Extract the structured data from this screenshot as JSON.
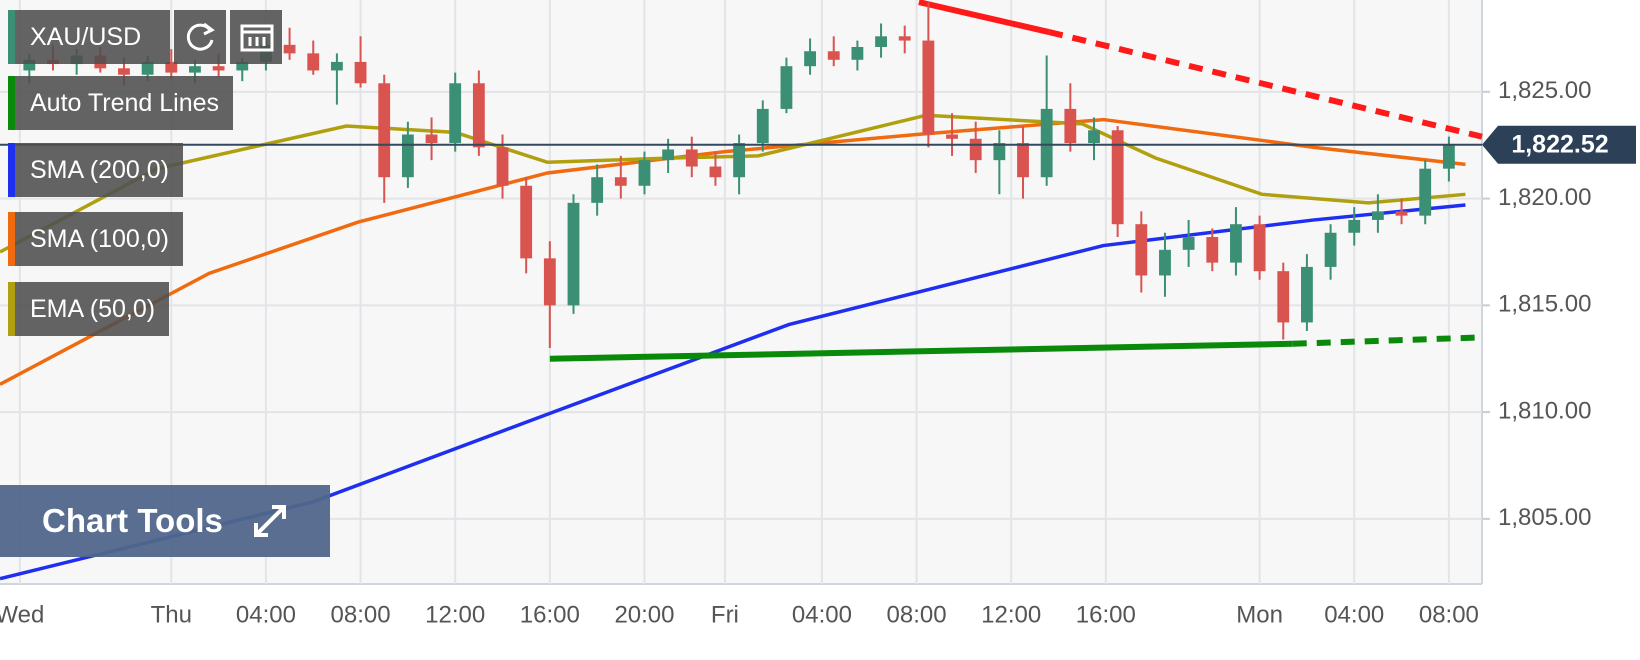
{
  "chart_data": {
    "type": "candlestick",
    "title": "XAU/USD",
    "up_color": "#3a8f74",
    "down_color": "#d9534f",
    "grid": true,
    "xlim": [
      -7.24,
      55.4
    ],
    "ylim": [
      1801.95,
      1829.3
    ],
    "xticks": [
      {
        "value": -6.4,
        "label": "Wed"
      },
      {
        "value": 0,
        "label": "Thu"
      },
      {
        "value": 4,
        "label": "04:00"
      },
      {
        "value": 8,
        "label": "08:00"
      },
      {
        "value": 12,
        "label": "12:00"
      },
      {
        "value": 16,
        "label": "16:00"
      },
      {
        "value": 20,
        "label": "20:00"
      },
      {
        "value": 23.4,
        "label": "Fri"
      },
      {
        "value": 27.5,
        "label": "04:00"
      },
      {
        "value": 31.5,
        "label": "08:00"
      },
      {
        "value": 35.5,
        "label": "12:00"
      },
      {
        "value": 39.5,
        "label": "16:00"
      },
      {
        "value": 46,
        "label": "Mon"
      },
      {
        "value": 50,
        "label": "04:00"
      },
      {
        "value": 54,
        "label": "08:00"
      }
    ],
    "yticks": [
      {
        "value": 1805,
        "label": "1,805.00"
      },
      {
        "value": 1810,
        "label": "1,810.00"
      },
      {
        "value": 1815,
        "label": "1,815.00"
      },
      {
        "value": 1820,
        "label": "1,820.00"
      },
      {
        "value": 1825,
        "label": "1,825.00"
      }
    ],
    "x": [
      -6,
      -5,
      -4,
      -3,
      -2,
      -1,
      0,
      1,
      2,
      3,
      4,
      5,
      6,
      7,
      8,
      9,
      10,
      11,
      12,
      13,
      14,
      15,
      16,
      17,
      18,
      19,
      20,
      21,
      22,
      23,
      24,
      25,
      26,
      27,
      28,
      29,
      30,
      31,
      32,
      33,
      34,
      35,
      36,
      37,
      38,
      39,
      40,
      41,
      42,
      43,
      44,
      45,
      46,
      47,
      48,
      49,
      50,
      51,
      52,
      53,
      54
    ],
    "open": [
      1826.0,
      1826.5,
      1826.3,
      1826.7,
      1826.1,
      1825.8,
      1826.4,
      1825.9,
      1826.2,
      1826.0,
      1826.4,
      1827.2,
      1826.8,
      1826.0,
      1826.4,
      1825.4,
      1821.0,
      1823.0,
      1822.6,
      1825.4,
      1822.4,
      1820.6,
      1817.2,
      1815.0,
      1819.8,
      1821.0,
      1820.6,
      1821.8,
      1822.3,
      1821.5,
      1821.0,
      1822.6,
      1824.2,
      1826.2,
      1826.9,
      1826.5,
      1827.1,
      1827.6,
      1827.4,
      1823.0,
      1822.8,
      1821.8,
      1822.6,
      1821.0,
      1824.2,
      1822.6,
      1823.2,
      1818.8,
      1816.4,
      1817.6,
      1818.2,
      1817.0,
      1818.8,
      1816.6,
      1814.2,
      1816.8,
      1818.4,
      1819.0,
      1819.4,
      1819.2,
      1821.4
    ],
    "high": [
      1826.8,
      1827.2,
      1827.0,
      1827.1,
      1826.6,
      1826.7,
      1827.0,
      1826.5,
      1826.8,
      1826.6,
      1827.5,
      1828.0,
      1827.4,
      1826.8,
      1827.6,
      1825.8,
      1823.6,
      1823.8,
      1825.9,
      1826.0,
      1823.0,
      1821.0,
      1818.0,
      1820.2,
      1821.6,
      1822.0,
      1822.2,
      1822.8,
      1822.9,
      1822.2,
      1823.0,
      1824.6,
      1826.6,
      1827.5,
      1827.6,
      1827.4,
      1828.2,
      1828.1,
      1829.2,
      1824.0,
      1823.6,
      1823.2,
      1823.4,
      1826.7,
      1825.4,
      1823.8,
      1823.4,
      1819.4,
      1818.4,
      1819.0,
      1818.6,
      1819.6,
      1819.2,
      1817.0,
      1817.4,
      1818.8,
      1819.6,
      1820.2,
      1820.0,
      1821.8,
      1822.9
    ],
    "low": [
      1825.4,
      1826.0,
      1825.8,
      1825.9,
      1825.3,
      1825.5,
      1825.6,
      1825.4,
      1825.7,
      1825.5,
      1826.0,
      1826.5,
      1825.8,
      1824.4,
      1825.2,
      1819.8,
      1820.5,
      1821.8,
      1822.2,
      1822.0,
      1820.0,
      1816.5,
      1813.0,
      1814.6,
      1819.2,
      1820.0,
      1820.2,
      1821.2,
      1821.0,
      1820.6,
      1820.2,
      1822.2,
      1824.0,
      1825.8,
      1826.2,
      1826.0,
      1826.6,
      1826.8,
      1822.4,
      1822.0,
      1821.2,
      1820.2,
      1820.0,
      1820.6,
      1822.2,
      1821.8,
      1818.2,
      1815.6,
      1815.4,
      1816.8,
      1816.6,
      1816.4,
      1816.2,
      1813.4,
      1813.8,
      1816.2,
      1817.8,
      1818.4,
      1818.8,
      1818.8,
      1820.8
    ],
    "close": [
      1826.5,
      1826.3,
      1826.7,
      1826.1,
      1825.8,
      1826.4,
      1825.9,
      1826.2,
      1826.0,
      1826.4,
      1827.2,
      1826.8,
      1826.0,
      1826.4,
      1825.4,
      1821.0,
      1823.0,
      1822.6,
      1825.4,
      1822.4,
      1820.6,
      1817.2,
      1815.0,
      1819.8,
      1821.0,
      1820.6,
      1821.8,
      1822.3,
      1821.5,
      1821.0,
      1822.6,
      1824.2,
      1826.2,
      1826.9,
      1826.5,
      1827.1,
      1827.6,
      1827.4,
      1823.0,
      1822.8,
      1821.8,
      1822.6,
      1821.0,
      1824.2,
      1822.6,
      1823.2,
      1818.8,
      1816.4,
      1817.6,
      1818.2,
      1817.0,
      1818.8,
      1816.6,
      1814.2,
      1816.8,
      1818.4,
      1819.0,
      1819.4,
      1819.2,
      1821.4,
      1822.52
    ],
    "series": [
      {
        "name": "SMA (200,0)",
        "color": "#1f2ff0",
        "x": [
          -7.24,
          6,
          15.9,
          26.1,
          39.4,
          48.3,
          54.7
        ],
        "values": [
          1802.2,
          1805.8,
          1809.9,
          1814.1,
          1817.8,
          1819.0,
          1819.7
        ]
      },
      {
        "name": "SMA (100,0)",
        "color": "#f06a10",
        "x": [
          -7.24,
          1.6,
          7.9,
          15.9,
          23.4,
          31.5,
          39.4,
          48.3,
          54.7
        ],
        "values": [
          1811.3,
          1816.5,
          1818.9,
          1821.2,
          1822.2,
          1823.0,
          1823.7,
          1822.4,
          1821.6
        ]
      },
      {
        "name": "EMA (50,0)",
        "color": "#b0a010",
        "x": [
          -7.24,
          -0.6,
          7.4,
          12,
          15.9,
          21.2,
          24.8,
          31.9,
          38.5,
          41.6,
          46.1,
          50.6,
          54.7
        ],
        "values": [
          1817.5,
          1821.4,
          1823.4,
          1823.1,
          1821.7,
          1821.9,
          1822.0,
          1823.9,
          1823.5,
          1821.9,
          1820.2,
          1819.8,
          1820.2
        ]
      }
    ],
    "trend_lines": {
      "name": "Auto Trend Lines",
      "lines": [
        {
          "color": "#ff1a1a",
          "x": [
            31.6,
            37.1,
            55.4
          ],
          "values": [
            1829.2,
            1827.8,
            1822.9
          ]
        },
        {
          "color": "#0a8a0a",
          "x": [
            16,
            47.4,
            55.4
          ],
          "values": [
            1812.5,
            1813.2,
            1813.5
          ]
        }
      ]
    },
    "current_price": {
      "value": 1822.52,
      "label": "1,822.52"
    },
    "chart_tools": "Chart Tools"
  }
}
